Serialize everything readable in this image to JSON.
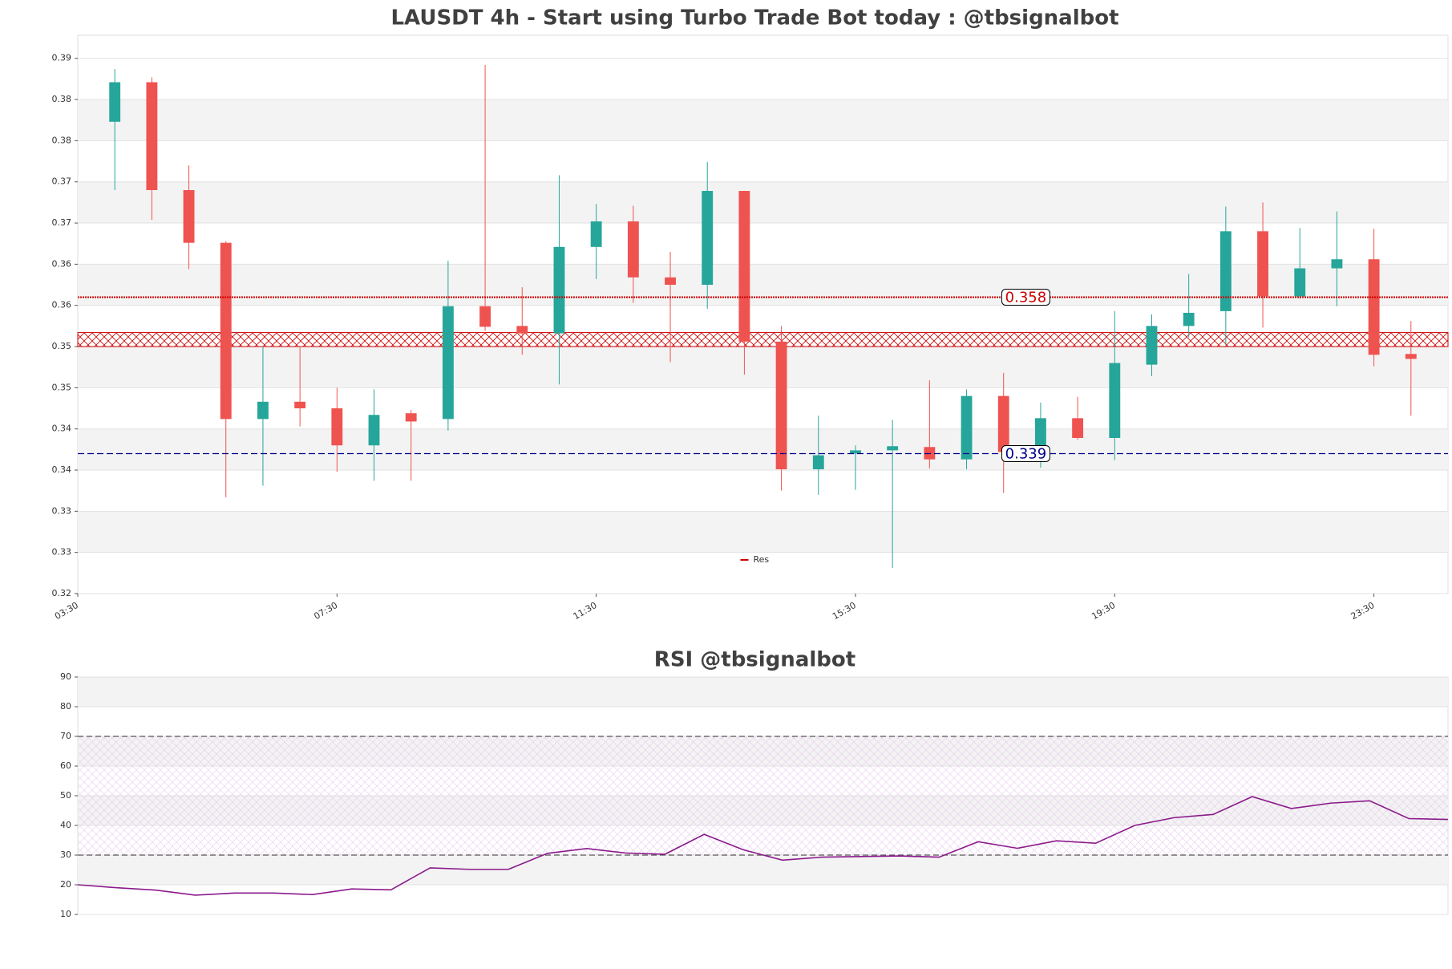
{
  "chart_data": [
    {
      "type": "candlestick",
      "title": "LAUSDT 4h - Start using Turbo Trade Bot today : @tbsignalbot",
      "open": [
        0.3793,
        0.3841,
        0.371,
        0.3646,
        0.3432,
        0.3453,
        0.3445,
        0.34,
        0.3439,
        0.3432,
        0.3569,
        0.3545,
        0.3536,
        0.3641,
        0.3672,
        0.3604,
        0.3595,
        0.3709,
        0.3526,
        0.3371,
        0.339,
        0.3394,
        0.3398,
        0.3383,
        0.346,
        0.3392,
        0.3433,
        0.3409,
        0.3498,
        0.3545,
        0.3563,
        0.366,
        0.3581,
        0.3615,
        0.3626,
        0.3511
      ],
      "high": [
        0.3857,
        0.3847,
        0.374,
        0.3648,
        0.3519,
        0.3519,
        0.347,
        0.3468,
        0.3443,
        0.3624,
        0.3862,
        0.3592,
        0.3728,
        0.3693,
        0.3691,
        0.3635,
        0.3744,
        0.3709,
        0.3545,
        0.3436,
        0.34,
        0.3431,
        0.3479,
        0.3468,
        0.3488,
        0.3452,
        0.3459,
        0.3563,
        0.3559,
        0.3608,
        0.369,
        0.3695,
        0.3664,
        0.3684,
        0.3663,
        0.3551
      ],
      "low": [
        0.371,
        0.3674,
        0.3614,
        0.3337,
        0.3351,
        0.3423,
        0.3368,
        0.3357,
        0.3357,
        0.3418,
        0.3539,
        0.351,
        0.3474,
        0.3602,
        0.3573,
        0.3501,
        0.3566,
        0.3486,
        0.3345,
        0.334,
        0.3346,
        0.3251,
        0.3372,
        0.3371,
        0.3342,
        0.3373,
        0.3407,
        0.3382,
        0.3484,
        0.3531,
        0.3522,
        0.3543,
        0.3578,
        0.3569,
        0.3496,
        0.3436
      ],
      "close": [
        0.3841,
        0.371,
        0.3646,
        0.3432,
        0.3453,
        0.3445,
        0.34,
        0.3437,
        0.3429,
        0.3569,
        0.3544,
        0.3536,
        0.3641,
        0.3672,
        0.3604,
        0.3595,
        0.3709,
        0.3526,
        0.3371,
        0.3388,
        0.3394,
        0.3399,
        0.3383,
        0.346,
        0.3392,
        0.3433,
        0.3409,
        0.35,
        0.3545,
        0.3561,
        0.366,
        0.3581,
        0.3615,
        0.3626,
        0.351,
        0.3505
      ],
      "up_color": "#26a69a",
      "down_color": "#ef5350",
      "xlim": [
        -1,
        36
      ],
      "xticks": [
        {
          "value": -1,
          "label": "03:30"
        },
        {
          "value": 6,
          "label": "07:30"
        },
        {
          "value": 13,
          "label": "11:30"
        },
        {
          "value": 20,
          "label": "15:30"
        },
        {
          "value": 27,
          "label": "19:30"
        },
        {
          "value": 34,
          "label": "23:30"
        }
      ],
      "ylim": [
        0.322,
        0.3898
      ],
      "yticks": [
        {
          "value": 0.322,
          "label": "0.32"
        },
        {
          "value": 0.327,
          "label": "0.33"
        },
        {
          "value": 0.332,
          "label": "0.33"
        },
        {
          "value": 0.337,
          "label": "0.34"
        },
        {
          "value": 0.342,
          "label": "0.34"
        },
        {
          "value": 0.347,
          "label": "0.35"
        },
        {
          "value": 0.352,
          "label": "0.35"
        },
        {
          "value": 0.357,
          "label": "0.36"
        },
        {
          "value": 0.362,
          "label": "0.36"
        },
        {
          "value": 0.367,
          "label": "0.37"
        },
        {
          "value": 0.372,
          "label": "0.37"
        },
        {
          "value": 0.377,
          "label": "0.38"
        },
        {
          "value": 0.382,
          "label": "0.38"
        },
        {
          "value": 0.387,
          "label": "0.39"
        }
      ],
      "grid": true,
      "resistance": {
        "name": "Res",
        "value": 0.358,
        "color": "#cc0000"
      },
      "support": {
        "value": 0.339,
        "color": "#00008b"
      },
      "zone": [
        0.352,
        0.3537
      ],
      "legend": "lower center"
    },
    {
      "type": "line",
      "title": "RSI @tbsignalbot",
      "values": [
        20,
        19,
        18.2,
        16.5,
        17.2,
        17.2,
        16.7,
        18.6,
        18.3,
        25.7,
        25.2,
        25.2,
        30.6,
        32.2,
        30.7,
        30.3,
        37,
        31.8,
        28.3,
        29.3,
        29.5,
        29.7,
        29.3,
        34.5,
        32.3,
        34.8,
        34,
        40,
        42.6,
        43.7,
        49.7,
        45.7,
        47.5,
        48.3,
        42.3,
        42
      ],
      "color": "#8b1a8b",
      "xlim": [
        0,
        35
      ],
      "ylim": [
        10,
        90
      ],
      "yticks": [
        10,
        20,
        30,
        40,
        50,
        60,
        70,
        80,
        90
      ],
      "hlines": [
        30,
        70
      ],
      "zone": [
        30,
        70
      ],
      "grid": true
    }
  ]
}
